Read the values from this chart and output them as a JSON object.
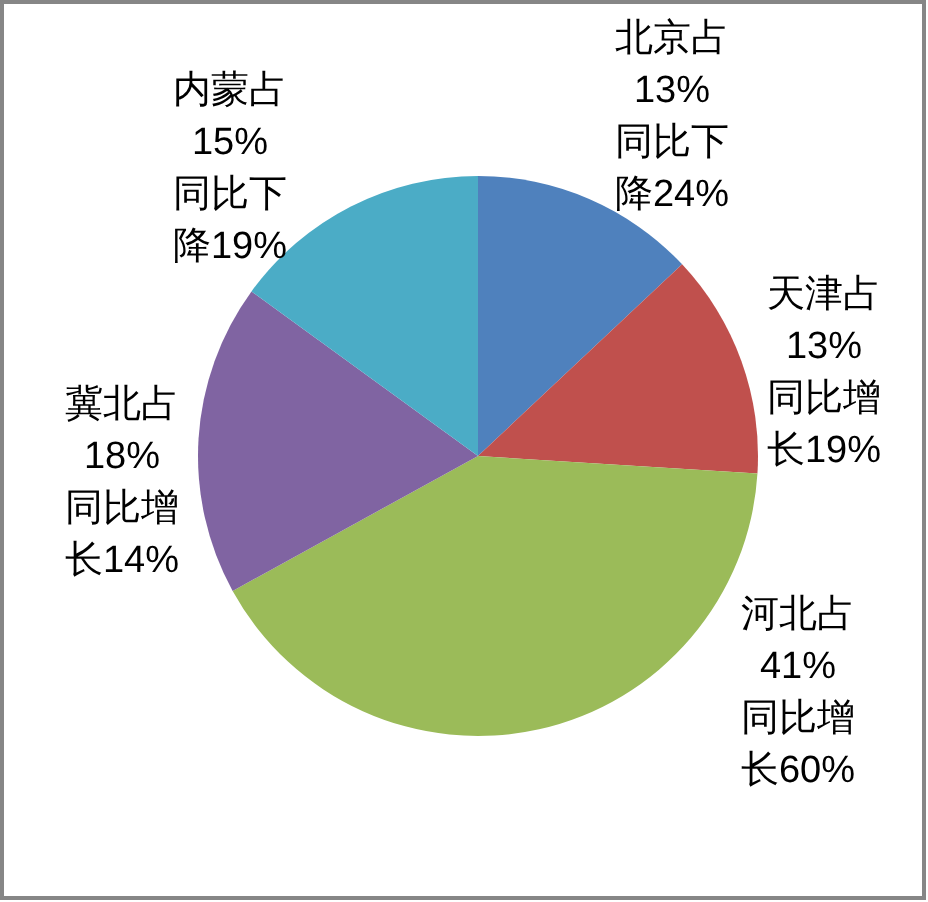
{
  "chart_data": {
    "type": "pie",
    "categories": [
      "北京占",
      "天津占",
      "河北占",
      "冀北占",
      "内蒙占"
    ],
    "values": [
      13,
      13,
      41,
      18,
      15
    ],
    "colors": [
      "#4f81bd",
      "#c0504d",
      "#9bbb59",
      "#8064a2",
      "#4bacc6"
    ],
    "value_labels": [
      "13%",
      "13%",
      "41%",
      "18%",
      "15%"
    ],
    "annotations": [
      "同比下降24%",
      "同比增长19%",
      "同比增长60%",
      "同比增长14%",
      "同比下降19%"
    ]
  }
}
